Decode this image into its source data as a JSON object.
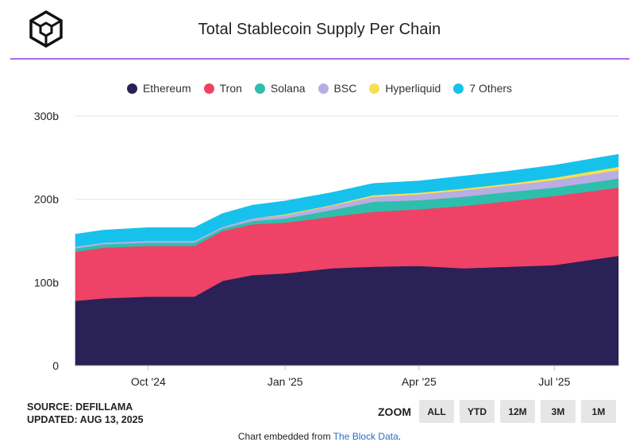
{
  "header": {
    "title": "Total Stablecoin Supply Per Chain",
    "logo_icon": "cube-logo-icon"
  },
  "footer": {
    "source": "SOURCE: DEFILLAMA",
    "updated": "UPDATED: AUG 13, 2025",
    "zoom_label": "ZOOM",
    "zoom_buttons": [
      "ALL",
      "YTD",
      "12M",
      "3M",
      "1M"
    ],
    "credit_prefix": "Chart embedded from ",
    "credit_link": "The Block Data",
    "credit_suffix": "."
  },
  "chart_data": {
    "type": "area",
    "stacked": true,
    "title": "Total Stablecoin Supply Per Chain",
    "legend_position": "top",
    "grid": "horizontal",
    "ylim": [
      0,
      300
    ],
    "y_unit": "b",
    "y_ticks": [
      "0",
      "100b",
      "200b",
      "300b"
    ],
    "x_range": [
      "2024-08-13",
      "2025-08-13"
    ],
    "x_ticks": [
      {
        "date": "2024-10-01",
        "label": "Oct '24"
      },
      {
        "date": "2025-01-01",
        "label": "Jan '25"
      },
      {
        "date": "2025-04-01",
        "label": "Apr '25"
      },
      {
        "date": "2025-07-01",
        "label": "Jul '25"
      }
    ],
    "x": [
      "2024-08-13",
      "2024-09-01",
      "2024-10-01",
      "2024-11-01",
      "2024-11-20",
      "2024-12-10",
      "2025-01-01",
      "2025-02-01",
      "2025-03-01",
      "2025-04-01",
      "2025-05-01",
      "2025-06-01",
      "2025-07-01",
      "2025-08-13"
    ],
    "series": [
      {
        "name": "Ethereum",
        "color": "#2a2156",
        "values": [
          78,
          81,
          83,
          83,
          102,
          109,
          111,
          117,
          119,
          120,
          117,
          119,
          121,
          132
        ]
      },
      {
        "name": "Tron",
        "color": "#ee4266",
        "values": [
          59,
          61,
          61,
          61,
          60,
          61,
          61,
          62,
          66,
          68,
          75,
          79,
          83,
          82
        ]
      },
      {
        "name": "Solana",
        "color": "#2ebfac",
        "values": [
          4,
          4,
          4,
          4,
          3,
          4,
          5,
          8,
          12,
          11,
          11,
          11,
          10,
          11
        ]
      },
      {
        "name": "BSC",
        "color": "#b9ade3",
        "values": [
          2,
          2,
          2,
          2,
          2,
          3,
          4,
          5,
          6,
          7,
          8,
          8,
          9,
          10
        ]
      },
      {
        "name": "Hyperliquid",
        "color": "#f5e050",
        "values": [
          0,
          0,
          0,
          0,
          0,
          0,
          1,
          1,
          2,
          2,
          2,
          2,
          3,
          4
        ]
      },
      {
        "name": "7 Others",
        "color": "#16c2ec",
        "values": [
          15,
          15,
          16,
          16,
          16,
          16,
          16,
          15,
          14,
          14,
          15,
          15,
          15,
          15
        ]
      }
    ]
  }
}
